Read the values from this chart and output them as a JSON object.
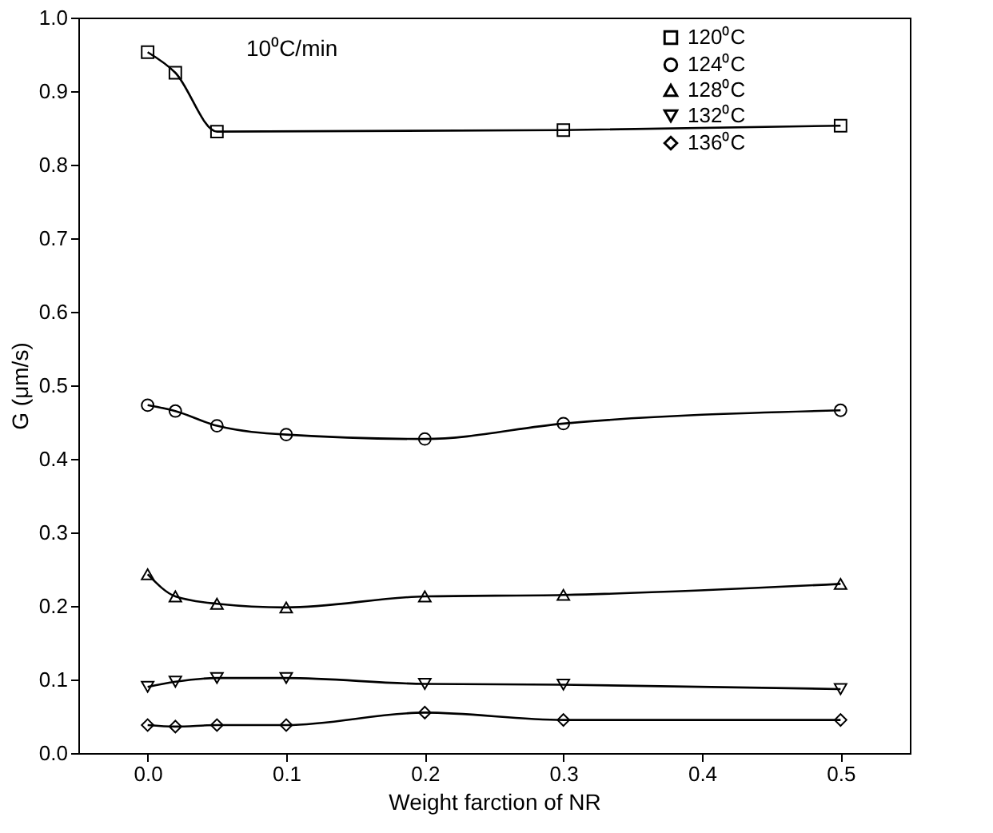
{
  "chart_data": {
    "type": "line",
    "xlabel": "Weight farction of NR",
    "ylabel": "G (μm/s)",
    "annotations": [
      "10⁰C/min"
    ],
    "xlim": [
      -0.05,
      0.55
    ],
    "xticks": [
      {
        "value": 0,
        "label": "0.0"
      },
      0.1,
      0.2,
      0.3,
      0.4,
      0.5
    ],
    "ylim": [
      0.0,
      1.0
    ],
    "yticks": [
      {
        "value": 0,
        "label": "0.0"
      },
      0.1,
      0.2,
      0.3,
      0.4,
      0.5,
      0.6,
      0.7,
      0.8,
      0.9,
      {
        "value": 1,
        "label": "1.0"
      }
    ],
    "grid": false,
    "legend": "top right",
    "line_style": "solid",
    "series": [
      {
        "name": "120⁰C",
        "color": "#000000",
        "marker": "square",
        "x": [
          0,
          0.02,
          0.05,
          0.3,
          0.5
        ],
        "values": [
          0.953,
          0.925,
          0.845,
          0.847,
          0.853
        ]
      },
      {
        "name": "124⁰C",
        "color": "#000000",
        "marker": "circle",
        "x": [
          0,
          0.02,
          0.05,
          0.1,
          0.2,
          0.3,
          0.5
        ],
        "values": [
          0.473,
          0.465,
          0.445,
          0.433,
          0.427,
          0.448,
          0.466
        ]
      },
      {
        "name": "128⁰C",
        "color": "#000000",
        "marker": "triangle",
        "x": [
          0,
          0.02,
          0.05,
          0.1,
          0.2,
          0.3,
          0.5
        ],
        "values": [
          0.243,
          0.213,
          0.203,
          0.198,
          0.213,
          0.215,
          0.23
        ]
      },
      {
        "name": "132⁰C",
        "color": "#000000",
        "marker": "triangle-down",
        "x": [
          0,
          0.02,
          0.05,
          0.1,
          0.2,
          0.3,
          0.5
        ],
        "values": [
          0.09,
          0.097,
          0.102,
          0.102,
          0.094,
          0.093,
          0.087
        ]
      },
      {
        "name": "136⁰C",
        "color": "#000000",
        "marker": "diamond",
        "x": [
          0,
          0.02,
          0.05,
          0.1,
          0.2,
          0.3,
          0.5
        ],
        "values": [
          0.038,
          0.036,
          0.038,
          0.038,
          0.055,
          0.045,
          0.045
        ]
      }
    ]
  }
}
